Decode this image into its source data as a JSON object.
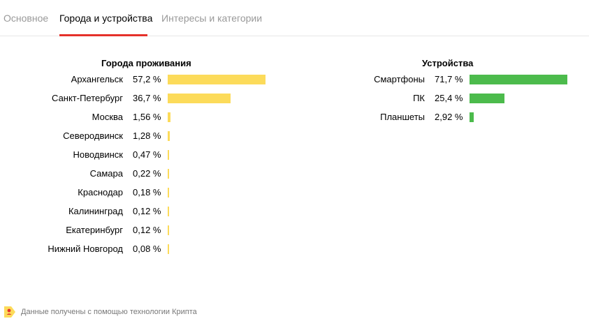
{
  "tabs": [
    {
      "label": "Основное"
    },
    {
      "label": "Города и устройства"
    },
    {
      "label": "Интересы и категории"
    }
  ],
  "cities": {
    "title": "Города проживания",
    "bar_color": "#fcdb5a",
    "items": [
      {
        "name": "Архангельск",
        "percent": "57,2 %",
        "value": 57.2
      },
      {
        "name": "Санкт-Петербург",
        "percent": "36,7 %",
        "value": 36.7
      },
      {
        "name": "Москва",
        "percent": "1,56 %",
        "value": 1.56
      },
      {
        "name": "Северодвинск",
        "percent": "1,28 %",
        "value": 1.28
      },
      {
        "name": "Новодвинск",
        "percent": "0,47 %",
        "value": 0.47
      },
      {
        "name": "Самара",
        "percent": "0,22 %",
        "value": 0.22
      },
      {
        "name": "Краснодар",
        "percent": "0,18 %",
        "value": 0.18
      },
      {
        "name": "Калининград",
        "percent": "0,12 %",
        "value": 0.12
      },
      {
        "name": "Екатеринбург",
        "percent": "0,12 %",
        "value": 0.12
      },
      {
        "name": "Нижний Новгород",
        "percent": "0,08 %",
        "value": 0.08
      }
    ]
  },
  "devices": {
    "title": "Устройства",
    "bar_color": "#4cbb4c",
    "items": [
      {
        "name": "Смартфоны",
        "percent": "71,7 %",
        "value": 71.7
      },
      {
        "name": "ПК",
        "percent": "25,4 %",
        "value": 25.4
      },
      {
        "name": "Планшеты",
        "percent": "2,92 %",
        "value": 2.92
      }
    ]
  },
  "footer": {
    "text": "Данные получены с помощью технологии Крипта",
    "logo_icon": "krypta-logo-icon"
  },
  "colors": {
    "accent": "#e5312a",
    "tab_inactive": "#999999",
    "footer_text": "#777777"
  }
}
